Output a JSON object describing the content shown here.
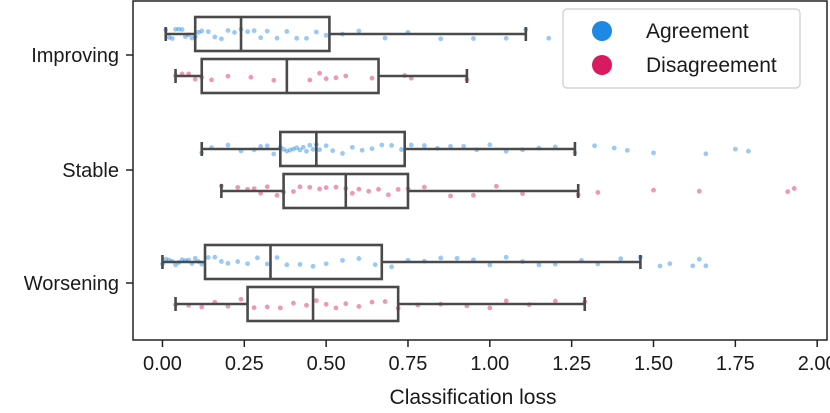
{
  "chart_data": {
    "type": "box",
    "orientation": "horizontal",
    "title": "",
    "xlabel": "Classification loss",
    "ylabel": "",
    "xlim": [
      -0.09,
      2.03
    ],
    "xticks": [
      0.0,
      0.25,
      0.5,
      0.75,
      1.0,
      1.25,
      1.5,
      1.75,
      2.0
    ],
    "xtick_labels": [
      "0.00",
      "0.25",
      "0.50",
      "0.75",
      "1.00",
      "1.25",
      "1.50",
      "1.75",
      "2.00"
    ],
    "categories": [
      "Improving",
      "Stable",
      "Worsening"
    ],
    "grid": false,
    "legend": {
      "placement": "top-right",
      "entries": [
        "Agreement",
        "Disagreement"
      ]
    },
    "series": [
      {
        "name": "Agreement",
        "color": "#1e88e5",
        "boxes": [
          {
            "category": "Improving",
            "whisker_low": 0.01,
            "q1": 0.1,
            "median": 0.24,
            "q3": 0.51,
            "whisker_high": 1.11
          },
          {
            "category": "Stable",
            "whisker_low": 0.12,
            "q1": 0.36,
            "median": 0.47,
            "q3": 0.74,
            "whisker_high": 1.26
          },
          {
            "category": "Worsening",
            "whisker_low": 0.0,
            "q1": 0.13,
            "median": 0.33,
            "q3": 0.67,
            "whisker_high": 1.46
          }
        ],
        "points": [
          [
            0.01,
            0.02,
            0.03,
            0.04,
            0.05,
            0.06,
            0.07,
            0.08,
            0.09,
            0.1,
            0.11,
            0.12,
            0.14,
            0.16,
            0.18,
            0.2,
            0.22,
            0.24,
            0.26,
            0.28,
            0.3,
            0.32,
            0.35,
            0.38,
            0.41,
            0.44,
            0.47,
            0.5,
            0.55,
            0.6,
            0.68,
            0.75,
            0.85,
            0.95,
            1.05,
            1.11,
            1.18
          ],
          [
            0.12,
            0.15,
            0.2,
            0.24,
            0.28,
            0.3,
            0.32,
            0.34,
            0.36,
            0.37,
            0.38,
            0.39,
            0.4,
            0.41,
            0.42,
            0.43,
            0.44,
            0.45,
            0.46,
            0.47,
            0.48,
            0.5,
            0.52,
            0.55,
            0.58,
            0.61,
            0.64,
            0.67,
            0.7,
            0.73,
            0.76,
            0.8,
            0.84,
            0.88,
            0.92,
            0.96,
            1.0,
            1.05,
            1.1,
            1.15,
            1.2,
            1.26,
            1.32,
            1.38,
            1.42,
            1.5,
            1.66,
            1.75,
            1.79
          ],
          [
            0.0,
            0.01,
            0.02,
            0.03,
            0.04,
            0.05,
            0.06,
            0.07,
            0.08,
            0.09,
            0.1,
            0.11,
            0.12,
            0.14,
            0.16,
            0.18,
            0.2,
            0.23,
            0.26,
            0.29,
            0.32,
            0.35,
            0.38,
            0.42,
            0.46,
            0.5,
            0.55,
            0.6,
            0.65,
            0.7,
            0.75,
            0.8,
            0.85,
            0.9,
            0.95,
            1.0,
            1.05,
            1.1,
            1.15,
            1.2,
            1.28,
            1.33,
            1.4,
            1.46,
            1.52,
            1.55,
            1.62,
            1.64,
            1.66
          ]
        ]
      },
      {
        "name": "Disagreement",
        "color": "#d81b60",
        "boxes": [
          {
            "category": "Improving",
            "whisker_low": 0.04,
            "q1": 0.12,
            "median": 0.38,
            "q3": 0.66,
            "whisker_high": 0.93
          },
          {
            "category": "Stable",
            "whisker_low": 0.18,
            "q1": 0.37,
            "median": 0.56,
            "q3": 0.75,
            "whisker_high": 1.27
          },
          {
            "category": "Worsening",
            "whisker_low": 0.04,
            "q1": 0.26,
            "median": 0.46,
            "q3": 0.72,
            "whisker_high": 1.29
          }
        ],
        "points": [
          [
            0.04,
            0.06,
            0.08,
            0.1,
            0.12,
            0.15,
            0.2,
            0.27,
            0.34,
            0.45,
            0.48,
            0.5,
            0.53,
            0.56,
            0.64,
            0.74,
            0.76,
            0.93
          ],
          [
            0.18,
            0.23,
            0.26,
            0.28,
            0.3,
            0.32,
            0.35,
            0.37,
            0.4,
            0.42,
            0.45,
            0.48,
            0.5,
            0.53,
            0.56,
            0.58,
            0.6,
            0.63,
            0.66,
            0.69,
            0.72,
            0.75,
            0.8,
            0.88,
            0.95,
            1.02,
            1.1,
            1.27,
            1.33,
            1.5,
            1.64,
            1.91,
            1.93
          ],
          [
            0.04,
            0.08,
            0.12,
            0.16,
            0.2,
            0.24,
            0.28,
            0.32,
            0.36,
            0.4,
            0.44,
            0.47,
            0.5,
            0.53,
            0.56,
            0.6,
            0.64,
            0.68,
            0.72,
            0.78,
            0.85,
            0.93,
            1.0,
            1.05,
            1.12,
            1.2,
            1.29
          ]
        ]
      }
    ]
  }
}
